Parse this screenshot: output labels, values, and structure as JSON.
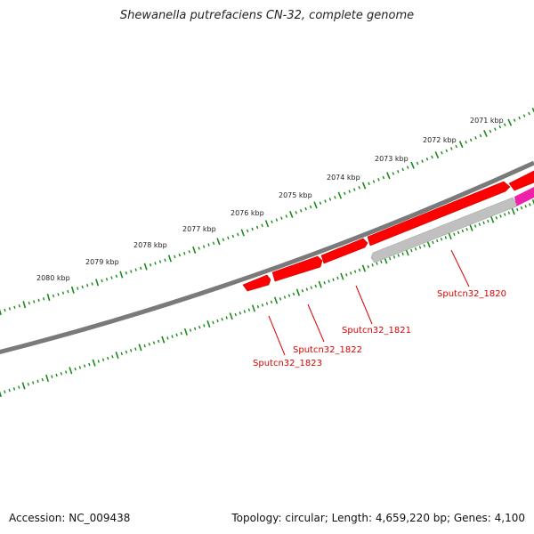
{
  "title": "Shewanella putrefaciens CN-32, complete genome",
  "ruler_labels": [
    "2071 kbp",
    "2072 kbp",
    "2073 kbp",
    "2074 kbp",
    "2075 kbp",
    "2076 kbp",
    "2077 kbp",
    "2078 kbp",
    "2079 kbp",
    "2080 kbp"
  ],
  "genes": [
    {
      "label": "Sputcn32_1820",
      "color": "#c0c0c0"
    },
    {
      "label": "Sputcn32_1821",
      "color": "#ff0000"
    },
    {
      "label": "Sputcn32_1822",
      "color": "#ff0000"
    },
    {
      "label": "Sputcn32_1823",
      "color": "#ff0000"
    }
  ],
  "colors": {
    "backbone": "#7a7a7a",
    "ruler_ticks": "#1a8a1a",
    "forward_gene": "#ff0000",
    "reverse_gene": "#c0c0c0",
    "highlight_gene": "#ee22aa",
    "gene_label": "#dd0000"
  },
  "footer": {
    "accession": "Accession: NC_009438",
    "stats": "Topology: circular; Length: 4,659,220 bp; Genes: 4,100"
  }
}
